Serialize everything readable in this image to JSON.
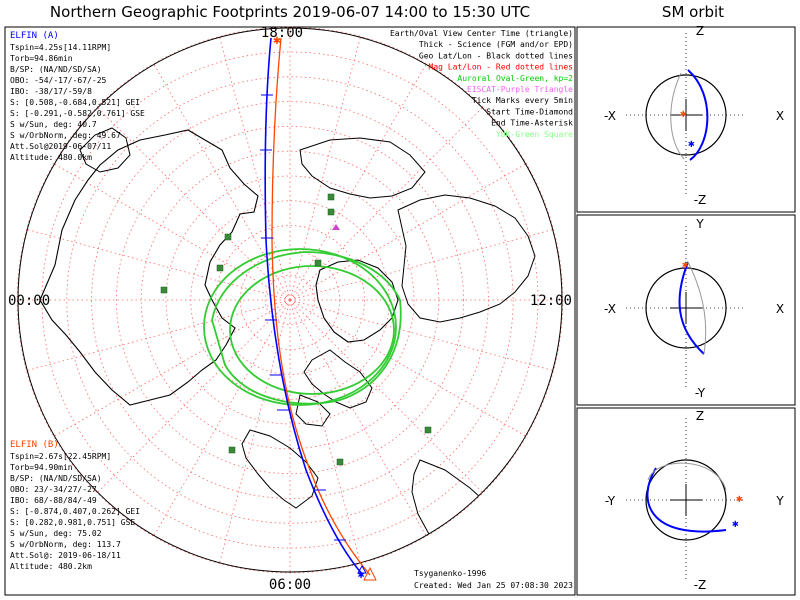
{
  "title": "Northern Geographic Footprints 2019-06-07 14:00 to 15:30 UTC",
  "sm_title": "SM orbit",
  "colors": {
    "probe_a": "#0000ff",
    "probe_b": "#ff4500",
    "oval": "#00cc00",
    "coast": "#000000",
    "grid": "#ff6666",
    "mag_grid": "#ff0000",
    "yuk": "#3a8a3a",
    "eiscat": "#cc44cc",
    "legend_black": "#000000",
    "legend_red": "#ff0000",
    "legend_green": "#00cc00",
    "legend_purple": "#ee66ee",
    "legend_yuk": "#88ff88"
  },
  "time_labels": {
    "top": "18:00",
    "left": "00:00",
    "right": "12:00",
    "bottom": "06:00"
  },
  "legend": [
    {
      "text": "Earth/Oval View Center Time (triangle)",
      "color": "legend_black"
    },
    {
      "text": "Thick - Science (FGM and/or EPD)",
      "color": "legend_black"
    },
    {
      "text": "Geo Lat/Lon - Black dotted lines",
      "color": "legend_black"
    },
    {
      "text": "Mag Lat/Lon - Red dotted lines",
      "color": "legend_red"
    },
    {
      "text": "Auroral Oval-Green, kp=2",
      "color": "legend_green"
    },
    {
      "text": "EISCAT-Purple Triangle",
      "color": "legend_purple"
    },
    {
      "text": "Tick Marks every 5min",
      "color": "legend_black"
    },
    {
      "text": "Start Time-Diamond",
      "color": "legend_black"
    },
    {
      "text": "End Time-Asterisk",
      "color": "legend_black"
    },
    {
      "text": "YUK-Green Square",
      "color": "legend_yuk"
    }
  ],
  "probe_a": {
    "name": "ELFIN (A)",
    "lines": [
      "Tspin=4.25s[14.11RPM]",
      "Torb=94.86min",
      "B/SP: (NA/ND/SD/SA)",
      "OBO: -54/-17/-67/-25",
      "IBO: -38/17/-59/8",
      "S: [0.508,-0.684,0.521] GEI",
      "S: [-0.291,-0.582,0.761] GSE",
      "S w/Sun, deg: 40.7",
      "S w/OrbNorm, deg: 49.67",
      "Att.Sol@2019-06-07/11",
      "Altitude: 480.0km"
    ]
  },
  "probe_b": {
    "name": "ELFIN (B)",
    "lines": [
      "Tspin=2.67s[22.45RPM]",
      "Torb=94.90min",
      "B/SP: (NA/ND/SD/SA)",
      "OBO: 23/-34/27/-27",
      "IBO: 68/-88/84/-49",
      "S: [-0.874,0.407,0.262] GEI",
      "S: [0.282,0.981,0.751] GSE",
      "S w/Sun, deg: 75.02",
      "S w/OrbNorm, deg: 113.7",
      "Att.Sol@: 2019-06-18/11",
      "Altitude: 480.2km"
    ]
  },
  "credit": "Tsyganenko-1996",
  "created": "Created: Wed Jan 25 07:08:30 2023",
  "sm_panels": [
    {
      "top": "Z",
      "bottom": "-Z",
      "left": "-X",
      "right": "X"
    },
    {
      "top": "Y",
      "bottom": "-Y",
      "left": "-X",
      "right": "X"
    },
    {
      "top": "Z",
      "bottom": "-Z",
      "left": "-Y",
      "right": "Y"
    }
  ],
  "chart_data": {
    "type": "scatter",
    "projection": "north polar stereographic, local time labels at 00/06/12/18",
    "mlt_labels": [
      "00:00",
      "06:00",
      "12:00",
      "18:00"
    ],
    "grid": true,
    "series": [
      {
        "name": "ELFIN (A)",
        "color": "probe_a"
      },
      {
        "name": "ELFIN (B)",
        "color": "probe_b"
      }
    ],
    "yuk_square_count": 9
  }
}
